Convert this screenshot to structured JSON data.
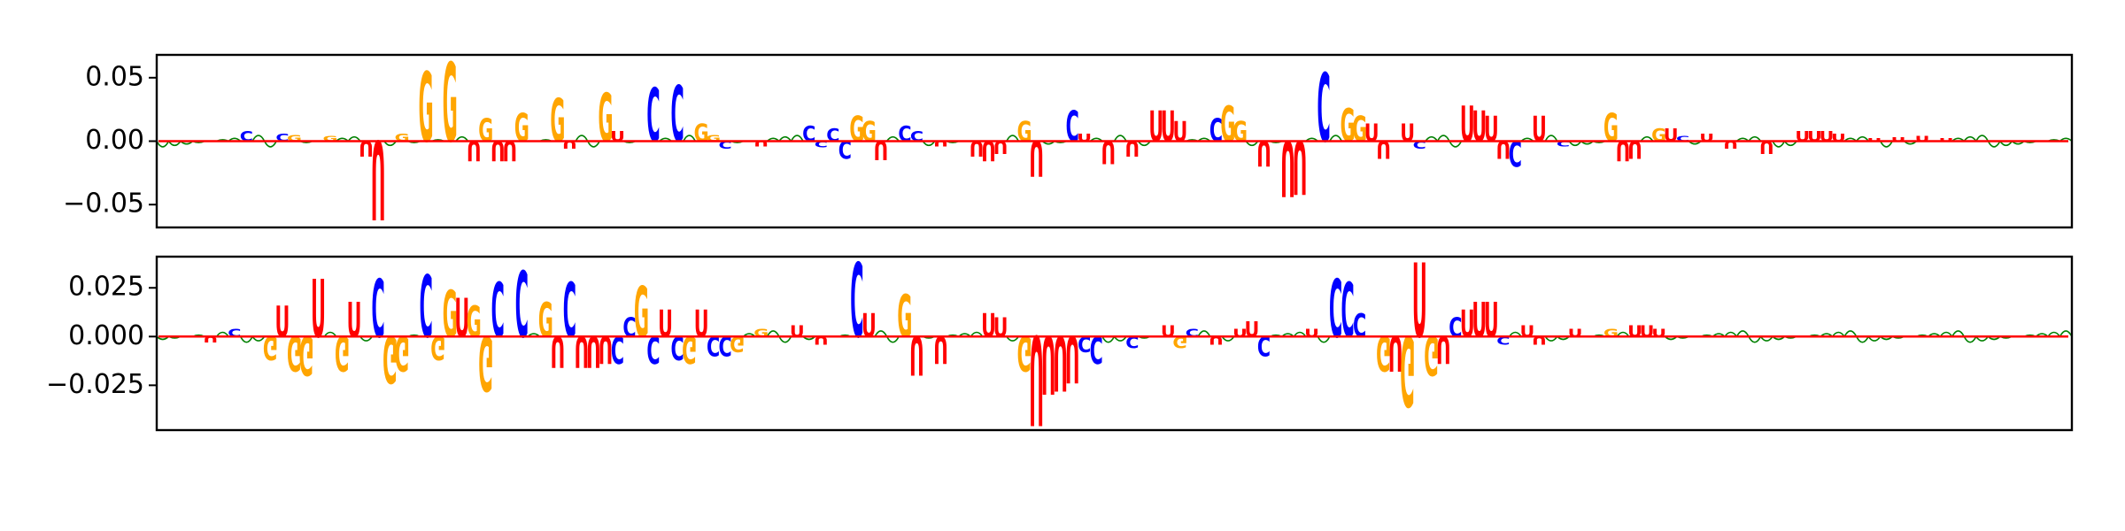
{
  "chart_data": [
    {
      "type": "sequence-logo",
      "panel": "top",
      "ylim": [
        -0.068,
        0.068
      ],
      "yticks": [
        {
          "value": 0.05,
          "label": "0.05"
        },
        {
          "value": 0.0,
          "label": "0.00"
        },
        {
          "value": -0.05,
          "label": "−0.05"
        }
      ],
      "positions": 160,
      "letters": [
        {
          "pos": 7,
          "base": "C",
          "value": 0.008
        },
        {
          "pos": 10,
          "base": "C",
          "value": 0.006
        },
        {
          "pos": 11,
          "base": "G",
          "value": 0.005
        },
        {
          "pos": 14,
          "base": "G",
          "value": 0.004
        },
        {
          "pos": 17,
          "base": "U",
          "value": -0.012
        },
        {
          "pos": 18,
          "base": "U",
          "value": -0.062
        },
        {
          "pos": 20,
          "base": "G",
          "value": 0.006
        },
        {
          "pos": 22,
          "base": "G",
          "value": 0.055
        },
        {
          "pos": 24,
          "base": "G",
          "value": 0.062
        },
        {
          "pos": 26,
          "base": "U",
          "value": -0.016
        },
        {
          "pos": 27,
          "base": "G",
          "value": 0.018
        },
        {
          "pos": 28,
          "base": "U",
          "value": -0.016
        },
        {
          "pos": 29,
          "base": "U",
          "value": -0.016
        },
        {
          "pos": 30,
          "base": "G",
          "value": 0.022
        },
        {
          "pos": 33,
          "base": "G",
          "value": 0.034
        },
        {
          "pos": 34,
          "base": "U",
          "value": -0.006
        },
        {
          "pos": 37,
          "base": "G",
          "value": 0.038
        },
        {
          "pos": 38,
          "base": "U",
          "value": 0.008
        },
        {
          "pos": 41,
          "base": "C",
          "value": 0.042
        },
        {
          "pos": 43,
          "base": "C",
          "value": 0.044
        },
        {
          "pos": 45,
          "base": "G",
          "value": 0.014
        },
        {
          "pos": 46,
          "base": "G",
          "value": 0.005
        },
        {
          "pos": 47,
          "base": "C",
          "value": -0.006
        },
        {
          "pos": 50,
          "base": "U",
          "value": -0.004
        },
        {
          "pos": 54,
          "base": "C",
          "value": 0.012
        },
        {
          "pos": 55,
          "base": "C",
          "value": -0.005
        },
        {
          "pos": 56,
          "base": "C",
          "value": 0.01
        },
        {
          "pos": 57,
          "base": "C",
          "value": -0.014
        },
        {
          "pos": 58,
          "base": "G",
          "value": 0.02
        },
        {
          "pos": 59,
          "base": "G",
          "value": 0.016
        },
        {
          "pos": 60,
          "base": "U",
          "value": -0.015
        },
        {
          "pos": 62,
          "base": "C",
          "value": 0.012
        },
        {
          "pos": 63,
          "base": "C",
          "value": 0.008
        },
        {
          "pos": 65,
          "base": "U",
          "value": -0.004
        },
        {
          "pos": 68,
          "base": "U",
          "value": -0.012
        },
        {
          "pos": 69,
          "base": "U",
          "value": -0.016
        },
        {
          "pos": 70,
          "base": "U",
          "value": -0.01
        },
        {
          "pos": 72,
          "base": "G",
          "value": 0.016
        },
        {
          "pos": 73,
          "base": "U",
          "value": -0.028
        },
        {
          "pos": 76,
          "base": "C",
          "value": 0.024
        },
        {
          "pos": 77,
          "base": "U",
          "value": 0.006
        },
        {
          "pos": 79,
          "base": "U",
          "value": -0.018
        },
        {
          "pos": 81,
          "base": "U",
          "value": -0.012
        },
        {
          "pos": 83,
          "base": "U",
          "value": 0.024
        },
        {
          "pos": 84,
          "base": "U",
          "value": 0.024
        },
        {
          "pos": 85,
          "base": "U",
          "value": 0.016
        },
        {
          "pos": 88,
          "base": "C",
          "value": 0.018
        },
        {
          "pos": 89,
          "base": "G",
          "value": 0.028
        },
        {
          "pos": 90,
          "base": "G",
          "value": 0.016
        },
        {
          "pos": 92,
          "base": "U",
          "value": -0.02
        },
        {
          "pos": 94,
          "base": "U",
          "value": -0.044
        },
        {
          "pos": 95,
          "base": "U",
          "value": -0.042
        },
        {
          "pos": 97,
          "base": "C",
          "value": 0.054
        },
        {
          "pos": 99,
          "base": "G",
          "value": 0.026
        },
        {
          "pos": 100,
          "base": "G",
          "value": 0.02
        },
        {
          "pos": 101,
          "base": "U",
          "value": 0.014
        },
        {
          "pos": 102,
          "base": "U",
          "value": -0.014
        },
        {
          "pos": 104,
          "base": "U",
          "value": 0.014
        },
        {
          "pos": 105,
          "base": "C",
          "value": -0.006
        },
        {
          "pos": 109,
          "base": "U",
          "value": 0.028
        },
        {
          "pos": 110,
          "base": "U",
          "value": 0.024
        },
        {
          "pos": 111,
          "base": "U",
          "value": 0.02
        },
        {
          "pos": 112,
          "base": "U",
          "value": -0.014
        },
        {
          "pos": 113,
          "base": "C",
          "value": -0.02
        },
        {
          "pos": 115,
          "base": "U",
          "value": 0.02
        },
        {
          "pos": 117,
          "base": "C",
          "value": -0.004
        },
        {
          "pos": 121,
          "base": "G",
          "value": 0.022
        },
        {
          "pos": 122,
          "base": "U",
          "value": -0.016
        },
        {
          "pos": 123,
          "base": "U",
          "value": -0.014
        },
        {
          "pos": 125,
          "base": "G",
          "value": 0.01
        },
        {
          "pos": 126,
          "base": "U",
          "value": 0.01
        },
        {
          "pos": 127,
          "base": "C",
          "value": 0.004
        },
        {
          "pos": 129,
          "base": "U",
          "value": 0.006
        },
        {
          "pos": 131,
          "base": "U",
          "value": -0.006
        },
        {
          "pos": 134,
          "base": "U",
          "value": -0.01
        },
        {
          "pos": 137,
          "base": "U",
          "value": 0.008
        },
        {
          "pos": 138,
          "base": "U",
          "value": 0.008
        },
        {
          "pos": 139,
          "base": "U",
          "value": 0.008
        },
        {
          "pos": 140,
          "base": "U",
          "value": 0.006
        },
        {
          "pos": 143,
          "base": "U",
          "value": 0.002
        },
        {
          "pos": 145,
          "base": "U",
          "value": 0.003
        },
        {
          "pos": 147,
          "base": "U",
          "value": 0.004
        },
        {
          "pos": 149,
          "base": "U",
          "value": 0.002
        }
      ]
    },
    {
      "type": "sequence-logo",
      "panel": "bottom",
      "ylim": [
        -0.048,
        0.041
      ],
      "yticks": [
        {
          "value": 0.025,
          "label": "0.025"
        },
        {
          "value": 0.0,
          "label": "0.000"
        },
        {
          "value": -0.025,
          "label": "−0.025"
        }
      ],
      "positions": 160,
      "letters": [
        {
          "pos": 4,
          "base": "U",
          "value": -0.003
        },
        {
          "pos": 6,
          "base": "C",
          "value": 0.004
        },
        {
          "pos": 9,
          "base": "G",
          "value": -0.012
        },
        {
          "pos": 10,
          "base": "U",
          "value": 0.016
        },
        {
          "pos": 11,
          "base": "G",
          "value": -0.018
        },
        {
          "pos": 12,
          "base": "G",
          "value": -0.02
        },
        {
          "pos": 13,
          "base": "U",
          "value": 0.03
        },
        {
          "pos": 15,
          "base": "G",
          "value": -0.018
        },
        {
          "pos": 16,
          "base": "U",
          "value": 0.018
        },
        {
          "pos": 18,
          "base": "C",
          "value": 0.03
        },
        {
          "pos": 19,
          "base": "G",
          "value": -0.024
        },
        {
          "pos": 20,
          "base": "G",
          "value": -0.018
        },
        {
          "pos": 22,
          "base": "C",
          "value": 0.032
        },
        {
          "pos": 23,
          "base": "G",
          "value": -0.012
        },
        {
          "pos": 24,
          "base": "G",
          "value": 0.024
        },
        {
          "pos": 25,
          "base": "U",
          "value": 0.02
        },
        {
          "pos": 26,
          "base": "G",
          "value": 0.016
        },
        {
          "pos": 27,
          "base": "G",
          "value": -0.028
        },
        {
          "pos": 28,
          "base": "C",
          "value": 0.028
        },
        {
          "pos": 30,
          "base": "C",
          "value": 0.034
        },
        {
          "pos": 32,
          "base": "G",
          "value": 0.018
        },
        {
          "pos": 33,
          "base": "U",
          "value": -0.016
        },
        {
          "pos": 34,
          "base": "C",
          "value": 0.028
        },
        {
          "pos": 35,
          "base": "U",
          "value": -0.016
        },
        {
          "pos": 36,
          "base": "U",
          "value": -0.016
        },
        {
          "pos": 37,
          "base": "U",
          "value": -0.014
        },
        {
          "pos": 38,
          "base": "C",
          "value": -0.014
        },
        {
          "pos": 39,
          "base": "C",
          "value": 0.01
        },
        {
          "pos": 40,
          "base": "G",
          "value": 0.026
        },
        {
          "pos": 41,
          "base": "C",
          "value": -0.014
        },
        {
          "pos": 42,
          "base": "U",
          "value": 0.014
        },
        {
          "pos": 43,
          "base": "C",
          "value": -0.012
        },
        {
          "pos": 44,
          "base": "G",
          "value": -0.014
        },
        {
          "pos": 45,
          "base": "U",
          "value": 0.014
        },
        {
          "pos": 46,
          "base": "C",
          "value": -0.01
        },
        {
          "pos": 47,
          "base": "C",
          "value": -0.01
        },
        {
          "pos": 48,
          "base": "G",
          "value": -0.008
        },
        {
          "pos": 50,
          "base": "G",
          "value": 0.004
        },
        {
          "pos": 53,
          "base": "U",
          "value": 0.006
        },
        {
          "pos": 55,
          "base": "U",
          "value": -0.004
        },
        {
          "pos": 58,
          "base": "C",
          "value": 0.038
        },
        {
          "pos": 59,
          "base": "U",
          "value": 0.012
        },
        {
          "pos": 62,
          "base": "G",
          "value": 0.022
        },
        {
          "pos": 63,
          "base": "U",
          "value": -0.02
        },
        {
          "pos": 65,
          "base": "U",
          "value": -0.014
        },
        {
          "pos": 69,
          "base": "U",
          "value": 0.012
        },
        {
          "pos": 70,
          "base": "U",
          "value": 0.01
        },
        {
          "pos": 72,
          "base": "G",
          "value": -0.018
        },
        {
          "pos": 73,
          "base": "U",
          "value": -0.046
        },
        {
          "pos": 74,
          "base": "U",
          "value": -0.03
        },
        {
          "pos": 75,
          "base": "U",
          "value": -0.028
        },
        {
          "pos": 76,
          "base": "U",
          "value": -0.024
        },
        {
          "pos": 77,
          "base": "C",
          "value": -0.008
        },
        {
          "pos": 78,
          "base": "C",
          "value": -0.014
        },
        {
          "pos": 81,
          "base": "C",
          "value": -0.006
        },
        {
          "pos": 84,
          "base": "U",
          "value": 0.006
        },
        {
          "pos": 85,
          "base": "G",
          "value": -0.006
        },
        {
          "pos": 86,
          "base": "C",
          "value": 0.004
        },
        {
          "pos": 88,
          "base": "U",
          "value": -0.004
        },
        {
          "pos": 90,
          "base": "U",
          "value": 0.004
        },
        {
          "pos": 91,
          "base": "U",
          "value": 0.008
        },
        {
          "pos": 92,
          "base": "C",
          "value": -0.01
        },
        {
          "pos": 96,
          "base": "U",
          "value": 0.004
        },
        {
          "pos": 98,
          "base": "C",
          "value": 0.03
        },
        {
          "pos": 99,
          "base": "C",
          "value": 0.028
        },
        {
          "pos": 100,
          "base": "C",
          "value": 0.012
        },
        {
          "pos": 102,
          "base": "G",
          "value": -0.018
        },
        {
          "pos": 103,
          "base": "U",
          "value": -0.018
        },
        {
          "pos": 104,
          "base": "G",
          "value": -0.036
        },
        {
          "pos": 105,
          "base": "U",
          "value": 0.038
        },
        {
          "pos": 106,
          "base": "G",
          "value": -0.02
        },
        {
          "pos": 107,
          "base": "U",
          "value": -0.014
        },
        {
          "pos": 108,
          "base": "C",
          "value": 0.01
        },
        {
          "pos": 109,
          "base": "U",
          "value": 0.014
        },
        {
          "pos": 110,
          "base": "U",
          "value": 0.018
        },
        {
          "pos": 111,
          "base": "U",
          "value": 0.018
        },
        {
          "pos": 112,
          "base": "C",
          "value": -0.004
        },
        {
          "pos": 114,
          "base": "U",
          "value": 0.006
        },
        {
          "pos": 115,
          "base": "U",
          "value": -0.004
        },
        {
          "pos": 118,
          "base": "U",
          "value": 0.004
        },
        {
          "pos": 121,
          "base": "G",
          "value": 0.004
        },
        {
          "pos": 123,
          "base": "U",
          "value": 0.006
        },
        {
          "pos": 124,
          "base": "U",
          "value": 0.006
        },
        {
          "pos": 125,
          "base": "U",
          "value": 0.004
        }
      ]
    }
  ],
  "colors": {
    "A": "#008000",
    "C": "#0000ff",
    "G": "#ffa500",
    "U": "#ff0000"
  }
}
